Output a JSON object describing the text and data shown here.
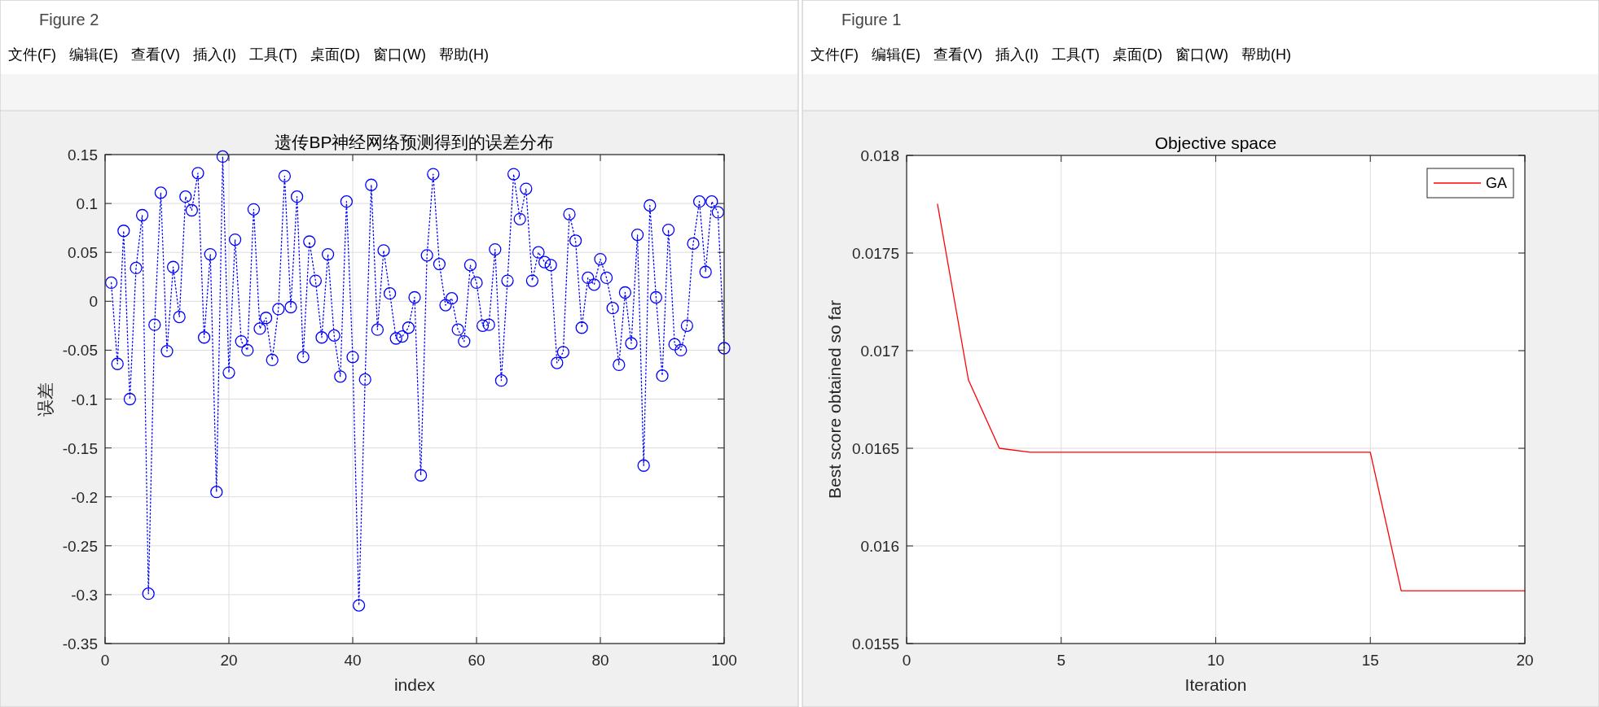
{
  "chart_data": [
    {
      "type": "line",
      "title": "遗传BP神经网络预测得到的误差分布",
      "xlabel": "index",
      "ylabel": "误差",
      "annotations": [
        "Figure 2",
        "文件(F)",
        "编辑(E)",
        "查看(V)",
        "插入(I)",
        "工具(T)",
        "桌面(D)",
        "窗口(W)",
        "帮助(H)"
      ],
      "xlim": [
        0,
        100
      ],
      "xticks": [
        0,
        20,
        40,
        60,
        80,
        100
      ],
      "ylim": [
        -0.35,
        0.15
      ],
      "yticks": [
        -0.35,
        -0.3,
        -0.25,
        -0.2,
        -0.15,
        -0.1,
        -0.05,
        0,
        0.05,
        0.1,
        0.15
      ],
      "grid": true,
      "marker": "circle",
      "line_style": "dotted",
      "series": [
        {
          "color": "#0000ff",
          "x": [
            1,
            2,
            3,
            4,
            5,
            6,
            7,
            8,
            9,
            10,
            11,
            12,
            13,
            14,
            15,
            16,
            17,
            18,
            19,
            20,
            21,
            22,
            23,
            24,
            25,
            26,
            27,
            28,
            29,
            30,
            31,
            32,
            33,
            34,
            35,
            36,
            37,
            38,
            39,
            40,
            41,
            42,
            43,
            44,
            45,
            46,
            47,
            48,
            49,
            50,
            51,
            52,
            53,
            54,
            55,
            56,
            57,
            58,
            59,
            60,
            61,
            62,
            63,
            64,
            65,
            66,
            67,
            68,
            69,
            70,
            71,
            72,
            73,
            74,
            75,
            76,
            77,
            78,
            79,
            80,
            81,
            82,
            83,
            84,
            85,
            86,
            87,
            88,
            89,
            90,
            91,
            92,
            93,
            94,
            95,
            96,
            97,
            98,
            99,
            100
          ],
          "values": [
            0.019,
            -0.064,
            0.072,
            -0.1,
            0.034,
            0.088,
            -0.299,
            -0.024,
            0.111,
            -0.051,
            0.035,
            -0.016,
            0.107,
            0.093,
            0.131,
            -0.037,
            0.048,
            -0.195,
            0.148,
            -0.073,
            0.063,
            -0.041,
            -0.05,
            0.094,
            -0.028,
            -0.017,
            -0.06,
            -0.008,
            0.128,
            -0.006,
            0.107,
            -0.057,
            0.061,
            0.021,
            -0.037,
            0.048,
            -0.035,
            -0.077,
            0.102,
            -0.057,
            -0.311,
            -0.08,
            0.119,
            -0.029,
            0.052,
            0.008,
            -0.038,
            -0.036,
            -0.027,
            0.004,
            -0.178,
            0.047,
            0.13,
            0.038,
            -0.004,
            0.003,
            -0.029,
            -0.041,
            0.037,
            0.019,
            -0.025,
            -0.024,
            0.053,
            -0.081,
            0.021,
            0.13,
            0.084,
            0.115,
            0.021,
            0.05,
            0.04,
            0.037,
            -0.063,
            -0.052,
            0.089,
            0.062,
            -0.027,
            0.024,
            0.017,
            0.043,
            0.024,
            -0.007,
            -0.065,
            0.009,
            -0.043,
            0.068,
            -0.168,
            0.098,
            0.004,
            -0.076,
            0.073,
            -0.044,
            -0.05,
            -0.025,
            0.059,
            0.102,
            0.03,
            0.102,
            0.091,
            -0.048
          ]
        }
      ]
    },
    {
      "type": "line",
      "title": "Objective space",
      "xlabel": "Iteration",
      "ylabel": "Best score obtained so far",
      "annotations": [
        "Figure 1",
        "文件(F)",
        "编辑(E)",
        "查看(V)",
        "插入(I)",
        "工具(T)",
        "桌面(D)",
        "窗口(W)",
        "帮助(H)"
      ],
      "xlim": [
        0,
        20
      ],
      "xticks": [
        0,
        5,
        10,
        15,
        20
      ],
      "ylim": [
        0.0155,
        0.018
      ],
      "yticks": [
        0.0155,
        0.016,
        0.0165,
        0.017,
        0.0175,
        0.018
      ],
      "grid": true,
      "legend": "top right",
      "series": [
        {
          "name": "GA",
          "color": "#ff0000",
          "x": [
            1,
            2,
            3,
            4,
            5,
            6,
            7,
            8,
            9,
            10,
            11,
            12,
            13,
            14,
            15,
            16,
            17,
            18,
            19,
            20
          ],
          "values": [
            0.01775,
            0.01685,
            0.0165,
            0.01648,
            0.01648,
            0.01648,
            0.01648,
            0.01648,
            0.01648,
            0.01648,
            0.01648,
            0.01648,
            0.01648,
            0.01648,
            0.01648,
            0.01577,
            0.01577,
            0.01577,
            0.01577,
            0.01577
          ]
        }
      ]
    }
  ]
}
